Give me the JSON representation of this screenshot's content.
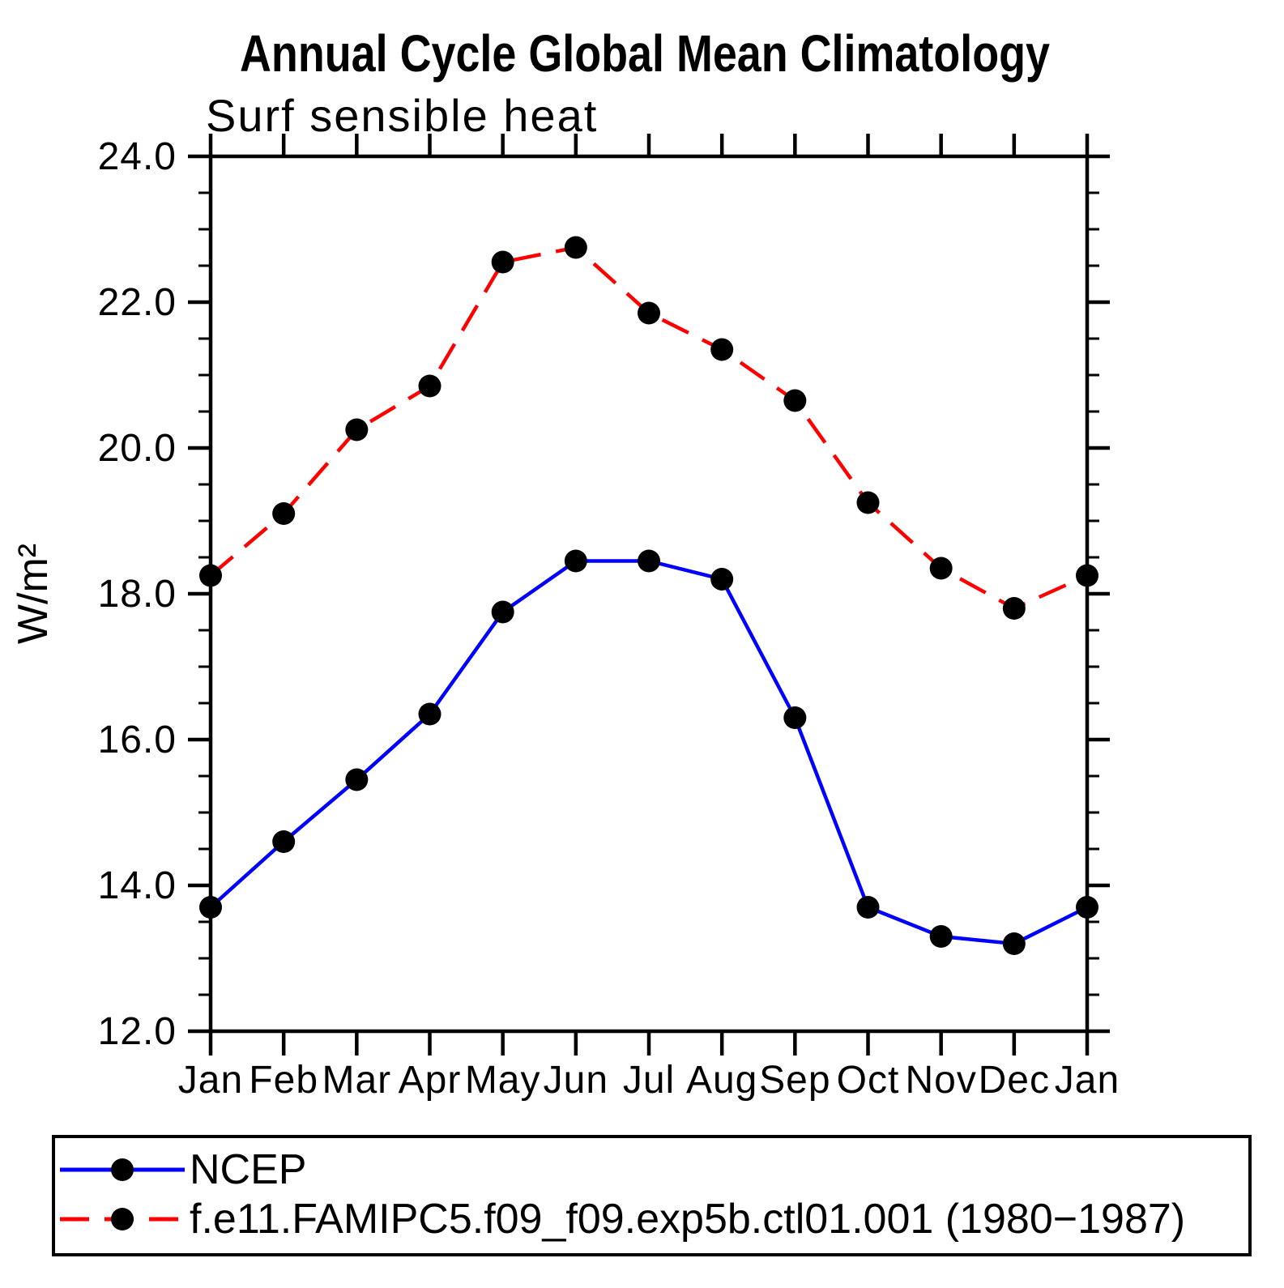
{
  "chart_data": {
    "type": "line",
    "title": "Annual Cycle Global Mean Climatology",
    "subtitle": "Surf sensible heat",
    "ylabel": "W/m²",
    "xlabel": "",
    "ylim": [
      12.0,
      24.0
    ],
    "ytick_interval": 2.0,
    "yminor_interval": 0.5,
    "ytick_labels": [
      "12.0",
      "14.0",
      "16.0",
      "18.0",
      "20.0",
      "22.0",
      "24.0"
    ],
    "categories": [
      "Jan",
      "Feb",
      "Mar",
      "Apr",
      "May",
      "Jun",
      "Jul",
      "Aug",
      "Sep",
      "Oct",
      "Nov",
      "Dec",
      "Jan"
    ],
    "grid": false,
    "legend_position": "bottom-box",
    "axis_color": "#000000",
    "series": [
      {
        "name": "NCEP",
        "color": "#0000ff",
        "line_style": "solid",
        "marker": "filled-circle",
        "marker_color": "#000000",
        "values": [
          13.7,
          14.6,
          15.45,
          16.35,
          17.75,
          18.45,
          18.45,
          18.2,
          16.3,
          13.7,
          13.3,
          13.2,
          13.7
        ]
      },
      {
        "name": "f.e11.FAMIPC5.f09_f09.exp5b.ctl01.001 (1980−1987)",
        "color": "#ff0000",
        "line_style": "dashed",
        "marker": "filled-circle",
        "marker_color": "#000000",
        "values": [
          18.25,
          19.1,
          20.25,
          20.85,
          22.55,
          22.75,
          21.85,
          21.35,
          20.65,
          19.25,
          18.35,
          17.8,
          18.25
        ]
      }
    ]
  }
}
